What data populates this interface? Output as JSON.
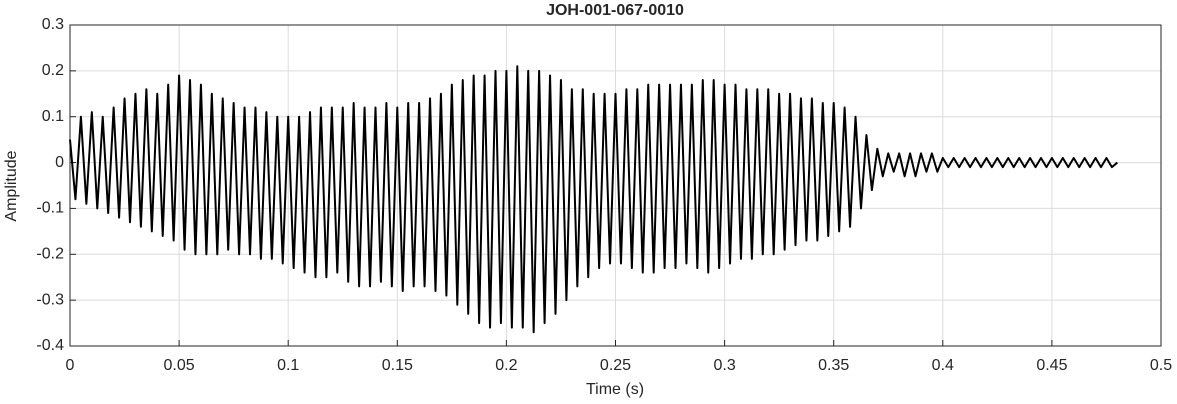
{
  "chart_data": {
    "type": "line",
    "title": "JOH-001-067-0010",
    "xlabel": "Time (s)",
    "ylabel": "Amplitude",
    "x": [
      0,
      0.0025,
      0.005,
      0.0075,
      0.01,
      0.0125,
      0.015,
      0.0175,
      0.02,
      0.0225,
      0.025,
      0.0275,
      0.03,
      0.0325,
      0.035,
      0.0375,
      0.04,
      0.0425,
      0.045,
      0.0475,
      0.05,
      0.0525,
      0.055,
      0.0575,
      0.06,
      0.0625,
      0.065,
      0.0675,
      0.07,
      0.0725,
      0.075,
      0.0775,
      0.08,
      0.0825,
      0.085,
      0.0875,
      0.09,
      0.0925,
      0.095,
      0.0975,
      0.1,
      0.1025,
      0.105,
      0.1075,
      0.11,
      0.1125,
      0.115,
      0.1175,
      0.12,
      0.1225,
      0.125,
      0.1275,
      0.13,
      0.1325,
      0.135,
      0.1375,
      0.14,
      0.1425,
      0.145,
      0.1475,
      0.15,
      0.1525,
      0.155,
      0.1575,
      0.16,
      0.1625,
      0.165,
      0.1675,
      0.17,
      0.1725,
      0.175,
      0.1775,
      0.18,
      0.1825,
      0.185,
      0.1875,
      0.19,
      0.1925,
      0.195,
      0.1975,
      0.2,
      0.2025,
      0.205,
      0.2075,
      0.21,
      0.2125,
      0.215,
      0.2175,
      0.22,
      0.2225,
      0.225,
      0.2275,
      0.23,
      0.2325,
      0.235,
      0.2375,
      0.24,
      0.2425,
      0.245,
      0.2475,
      0.25,
      0.2525,
      0.255,
      0.2575,
      0.26,
      0.2625,
      0.265,
      0.2675,
      0.27,
      0.2725,
      0.275,
      0.2775,
      0.28,
      0.2825,
      0.285,
      0.2875,
      0.29,
      0.2925,
      0.295,
      0.2975,
      0.3,
      0.3025,
      0.305,
      0.3075,
      0.31,
      0.3125,
      0.315,
      0.3175,
      0.32,
      0.3225,
      0.325,
      0.3275,
      0.33,
      0.3325,
      0.335,
      0.3375,
      0.34,
      0.3425,
      0.345,
      0.3475,
      0.35,
      0.3525,
      0.355,
      0.3575,
      0.36,
      0.3625,
      0.365,
      0.3675,
      0.37,
      0.3725,
      0.375,
      0.3775,
      0.38,
      0.3825,
      0.385,
      0.3875,
      0.39,
      0.3925,
      0.395,
      0.3975,
      0.4,
      0.4025,
      0.405,
      0.4075,
      0.41,
      0.4125,
      0.415,
      0.4175,
      0.42,
      0.4225,
      0.425,
      0.4275,
      0.43,
      0.4325,
      0.435,
      0.4375,
      0.44,
      0.4425,
      0.445,
      0.4475,
      0.45,
      0.4525,
      0.455,
      0.4575,
      0.46,
      0.4625,
      0.465,
      0.4675,
      0.47,
      0.4725,
      0.475,
      0.4775,
      0.48
    ],
    "values": [
      0.05,
      -0.08,
      0.1,
      -0.09,
      0.11,
      -0.1,
      0.1,
      -0.11,
      0.12,
      -0.12,
      0.14,
      -0.13,
      0.15,
      -0.14,
      0.16,
      -0.15,
      0.15,
      -0.16,
      0.17,
      -0.17,
      0.19,
      -0.19,
      0.18,
      -0.2,
      0.17,
      -0.2,
      0.15,
      -0.2,
      0.14,
      -0.19,
      0.13,
      -0.2,
      0.12,
      -0.2,
      0.12,
      -0.21,
      0.11,
      -0.21,
      0.1,
      -0.22,
      0.1,
      -0.23,
      0.1,
      -0.24,
      0.11,
      -0.25,
      0.12,
      -0.25,
      0.12,
      -0.24,
      0.12,
      -0.26,
      0.13,
      -0.27,
      0.12,
      -0.27,
      0.12,
      -0.26,
      0.13,
      -0.27,
      0.12,
      -0.28,
      0.13,
      -0.27,
      0.13,
      -0.27,
      0.14,
      -0.28,
      0.15,
      -0.29,
      0.17,
      -0.31,
      0.18,
      -0.33,
      0.19,
      -0.35,
      0.19,
      -0.36,
      0.2,
      -0.35,
      0.2,
      -0.36,
      0.21,
      -0.36,
      0.2,
      -0.37,
      0.2,
      -0.35,
      0.19,
      -0.33,
      0.18,
      -0.3,
      0.16,
      -0.27,
      0.16,
      -0.25,
      0.15,
      -0.23,
      0.15,
      -0.22,
      0.15,
      -0.22,
      0.16,
      -0.23,
      0.16,
      -0.24,
      0.17,
      -0.24,
      0.17,
      -0.23,
      0.17,
      -0.23,
      0.17,
      -0.22,
      0.17,
      -0.23,
      0.18,
      -0.24,
      0.18,
      -0.23,
      0.17,
      -0.22,
      0.17,
      -0.21,
      0.16,
      -0.21,
      0.16,
      -0.2,
      0.16,
      -0.2,
      0.15,
      -0.19,
      0.15,
      -0.18,
      0.14,
      -0.17,
      0.14,
      -0.17,
      0.13,
      -0.16,
      0.13,
      -0.15,
      0.12,
      -0.14,
      0.1,
      -0.1,
      0.06,
      -0.06,
      0.03,
      -0.03,
      0.02,
      -0.02,
      0.02,
      -0.03,
      0.02,
      -0.03,
      0.02,
      -0.02,
      0.02,
      -0.02,
      0.01,
      -0.01,
      0.01,
      -0.01,
      0.01,
      -0.01,
      0.01,
      -0.01,
      0.01,
      -0.01,
      0.01,
      -0.01,
      0.01,
      -0.01,
      0.01,
      -0.01,
      0.01,
      -0.01,
      0.01,
      -0.01,
      0.01,
      -0.01,
      0.01,
      -0.01,
      0.01,
      -0.01,
      0.01,
      -0.01,
      0.01,
      -0.01,
      0.01,
      -0.01,
      0
    ],
    "color": "#000000",
    "xlim": [
      0,
      0.5
    ],
    "xticks": [
      0,
      0.05,
      0.1,
      0.15,
      0.2,
      0.25,
      0.3,
      0.35,
      0.4,
      0.45,
      0.5
    ],
    "ylim": [
      -0.4,
      0.3
    ],
    "yticks": [
      -0.4,
      -0.3,
      -0.2,
      -0.1,
      0,
      0.1,
      0.2,
      0.3
    ],
    "grid": true
  }
}
